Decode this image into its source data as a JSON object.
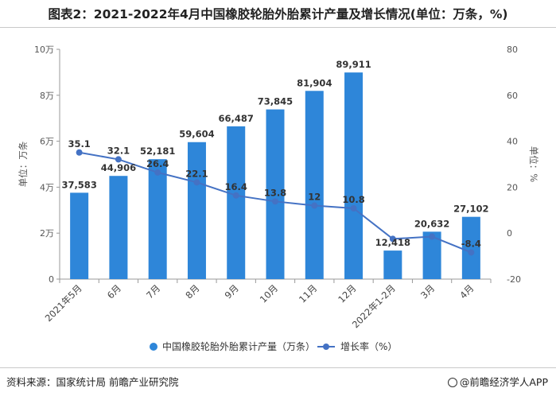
{
  "title": "图表2：2021-2022年4月中国橡胶轮胎外胎累计产量及增长情况(单位：万条，%)",
  "source": "资料来源：国家统计局 前瞻产业研究院",
  "brand": "@前瞻经济学人APP",
  "colors": {
    "bar": "#2e86d9",
    "line": "#4472c4",
    "axis": "#999999",
    "text": "#333333"
  },
  "chart_data": {
    "type": "bar",
    "categories": [
      "2021年5月",
      "6月",
      "7月",
      "8月",
      "9月",
      "10月",
      "11月",
      "12月",
      "2022年1-2月",
      "3月",
      "4月"
    ],
    "series": [
      {
        "name": "中国橡胶轮胎外胎累计产量（万条）",
        "type": "bar",
        "axis": "left",
        "values": [
          37583,
          44906,
          52181,
          59604,
          66487,
          73845,
          81904,
          89911,
          12418,
          20632,
          27102
        ],
        "labels": [
          "37,583",
          "44,906",
          "52,181",
          "59,604",
          "66,487",
          "73,845",
          "81,904",
          "89,911",
          "12,418",
          "20,632",
          "27,102"
        ]
      },
      {
        "name": "增长率（%）",
        "type": "line",
        "axis": "right",
        "values": [
          35.1,
          32.1,
          26.4,
          22.1,
          16.4,
          13.8,
          12,
          10.8,
          -2.5,
          -1.5,
          -8.4
        ],
        "labels": [
          "35.1",
          "32.1",
          "26.4",
          "22.1",
          "16.4",
          "13.8",
          "12",
          "10.8",
          "",
          "",
          "-8.4"
        ]
      }
    ],
    "ylabel_left": "单位：万条",
    "ylabel_right": "单位：%",
    "ylim_left": [
      0,
      100000
    ],
    "yticks_left": [
      "0",
      "2万",
      "4万",
      "6万",
      "8万",
      "10万"
    ],
    "ylim_right": [
      -20,
      80
    ],
    "yticks_right": [
      "-20",
      "0",
      "20",
      "40",
      "60",
      "80"
    ],
    "legend_position": "bottom",
    "grid": false
  }
}
